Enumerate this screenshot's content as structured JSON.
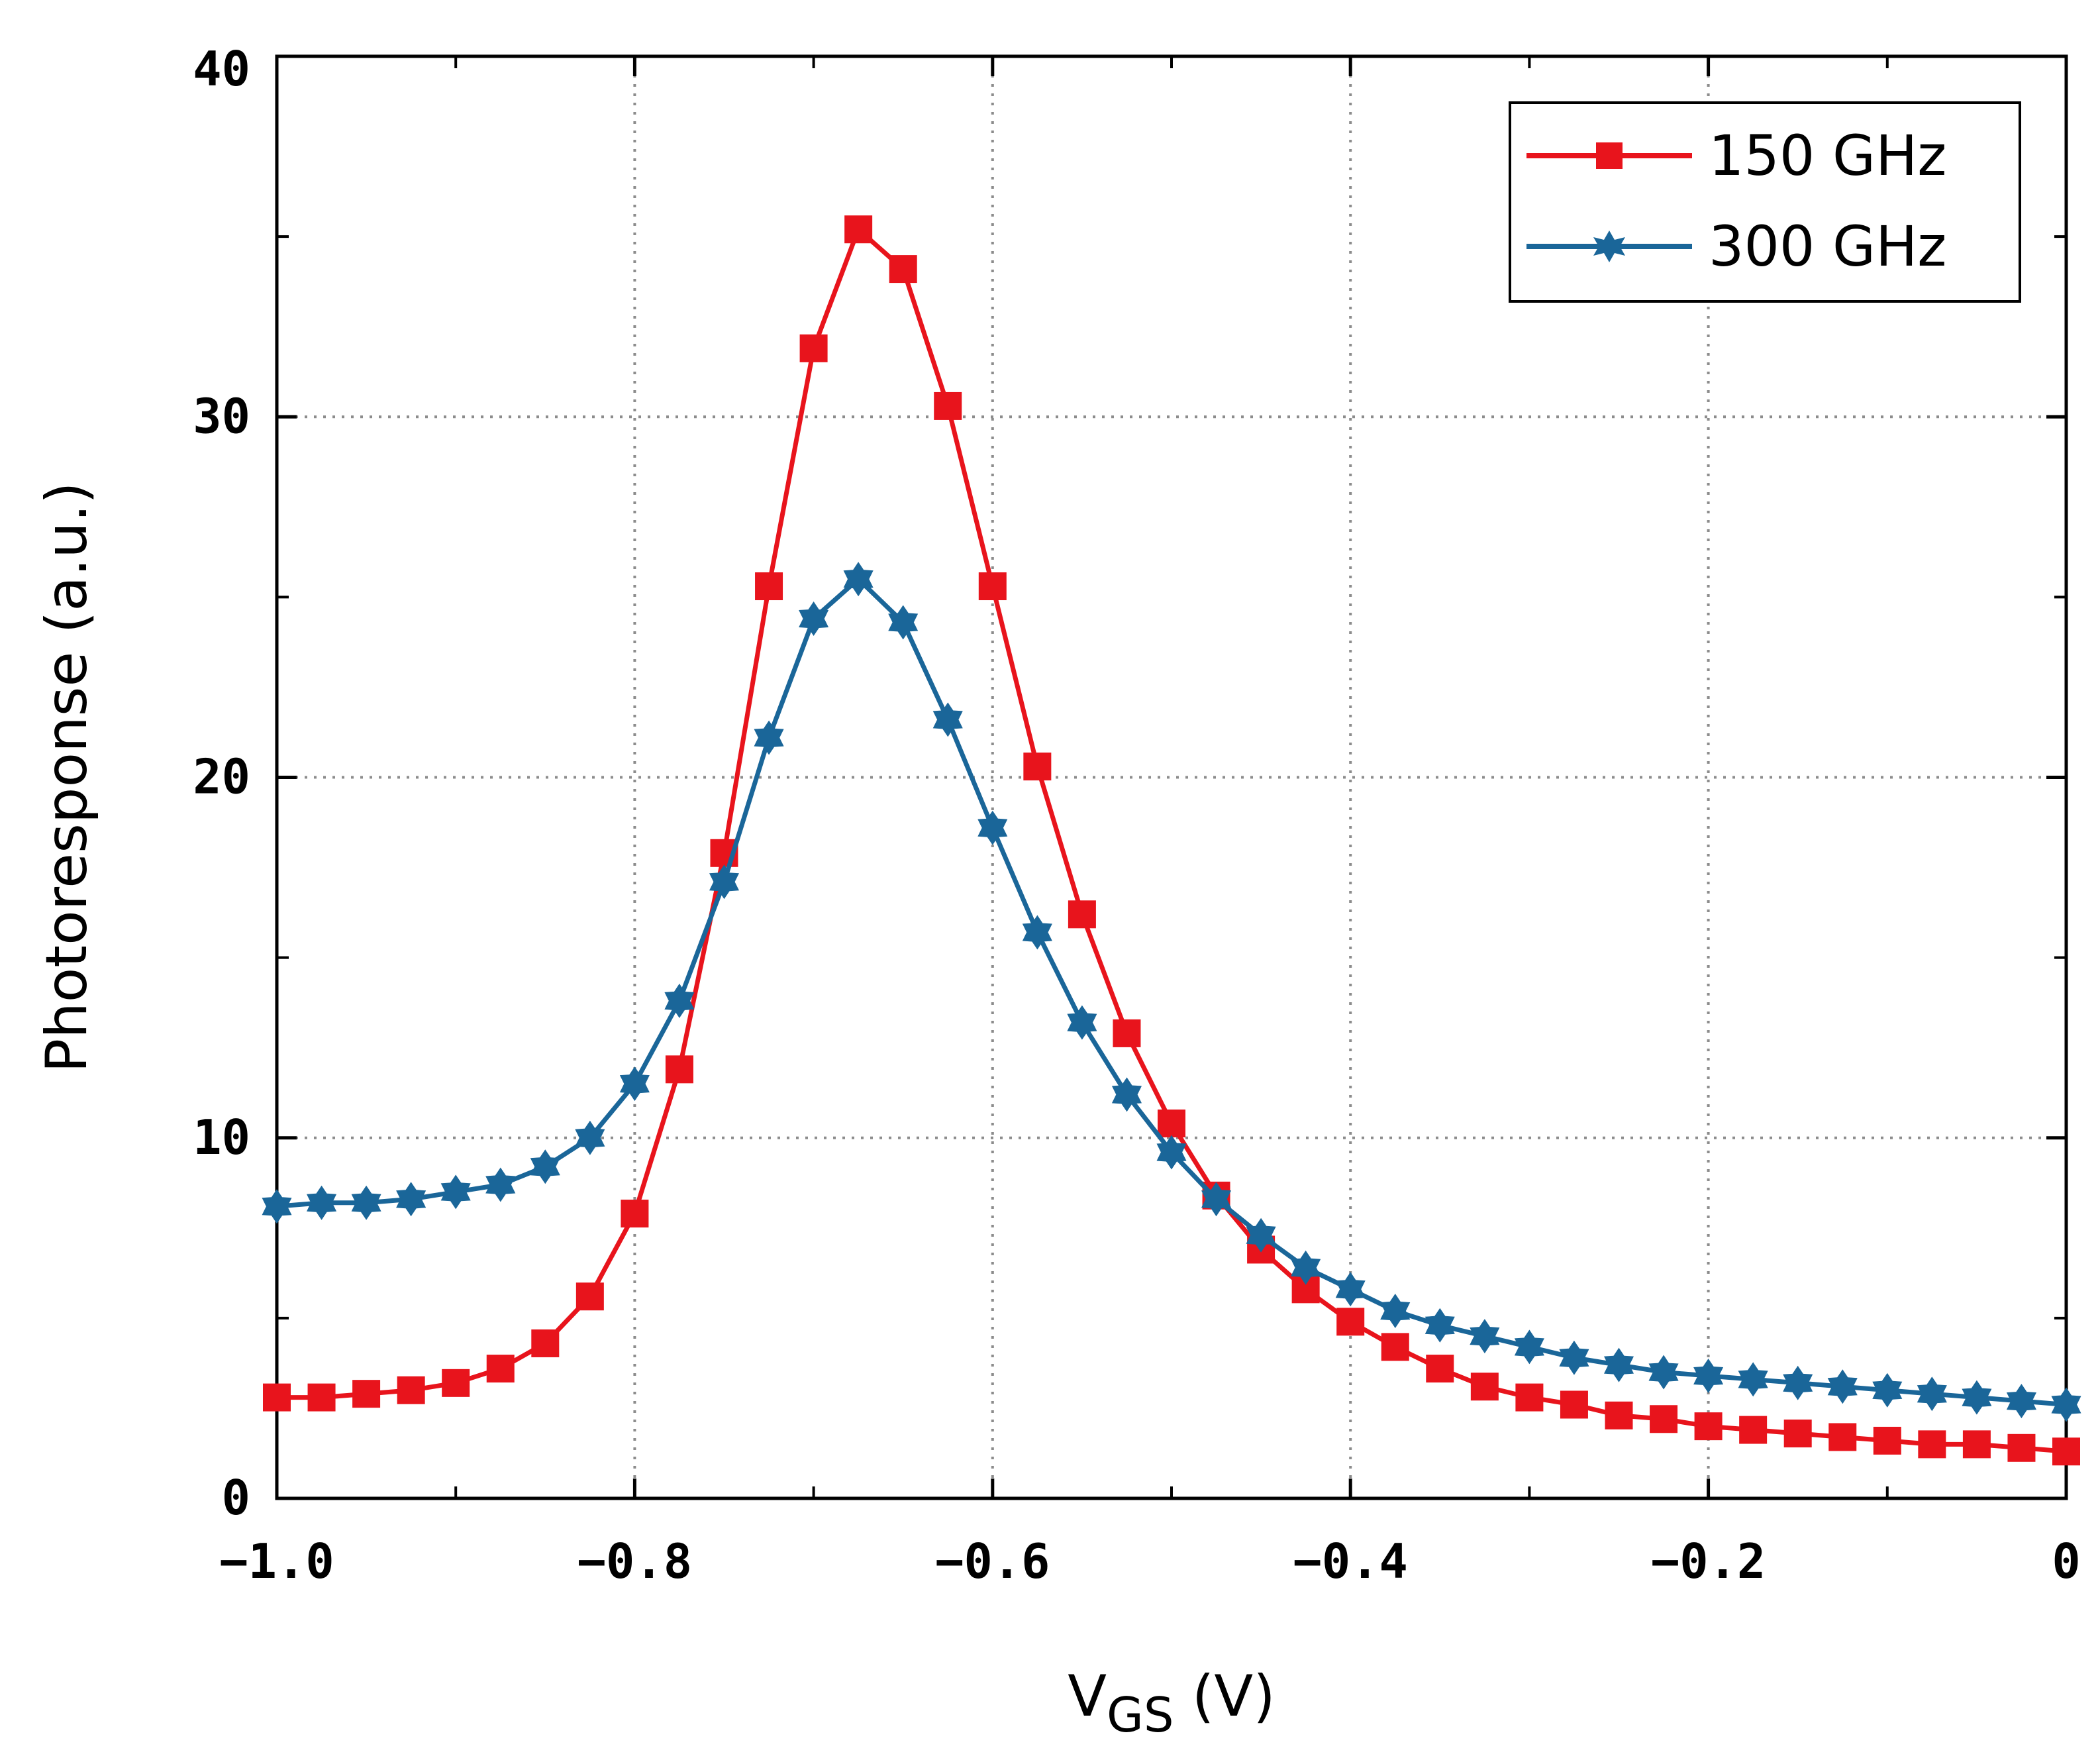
{
  "chart_data": {
    "type": "line",
    "title": "",
    "xlabel": {
      "main": "V",
      "subscript": "GS",
      "unit": " (V)"
    },
    "ylabel": "Photoresponse (a.u.)",
    "xlim": [
      -1.0,
      0
    ],
    "ylim": [
      0,
      40
    ],
    "x_ticks": [
      -1.0,
      -0.8,
      -0.6,
      -0.4,
      -0.2,
      0
    ],
    "x_tick_labels": [
      "−1.0",
      "−0.8",
      "−0.6",
      "−0.4",
      "−0.2",
      "0"
    ],
    "y_ticks": [
      0,
      10,
      20,
      30,
      40
    ],
    "y_tick_labels": [
      "0",
      "10",
      "20",
      "30",
      "40"
    ],
    "grid": true,
    "legend_position": "top-right",
    "x": [
      -1.0,
      -0.975,
      -0.95,
      -0.925,
      -0.9,
      -0.875,
      -0.85,
      -0.825,
      -0.8,
      -0.775,
      -0.75,
      -0.725,
      -0.7,
      -0.675,
      -0.65,
      -0.625,
      -0.6,
      -0.575,
      -0.55,
      -0.525,
      -0.5,
      -0.475,
      -0.45,
      -0.425,
      -0.4,
      -0.375,
      -0.35,
      -0.325,
      -0.3,
      -0.275,
      -0.25,
      -0.225,
      -0.2,
      -0.175,
      -0.15,
      -0.125,
      -0.1,
      -0.075,
      -0.05,
      -0.025,
      0
    ],
    "series": [
      {
        "name": "150 GHz",
        "color": "#e8141c",
        "marker": "square",
        "values": [
          2.8,
          2.8,
          2.9,
          3.0,
          3.2,
          3.6,
          4.3,
          5.6,
          7.9,
          11.9,
          17.9,
          25.3,
          31.9,
          35.2,
          34.1,
          30.3,
          25.3,
          20.3,
          16.2,
          12.9,
          10.4,
          8.4,
          6.9,
          5.8,
          4.9,
          4.2,
          3.6,
          3.1,
          2.8,
          2.6,
          2.3,
          2.2,
          2.0,
          1.9,
          1.8,
          1.7,
          1.6,
          1.5,
          1.5,
          1.4,
          1.3
        ]
      },
      {
        "name": "300 GHz",
        "color": "#1a6699",
        "marker": "star",
        "values": [
          8.1,
          8.2,
          8.2,
          8.3,
          8.5,
          8.7,
          9.2,
          10.0,
          11.5,
          13.8,
          17.1,
          21.1,
          24.4,
          25.5,
          24.3,
          21.6,
          18.6,
          15.7,
          13.2,
          11.2,
          9.6,
          8.3,
          7.3,
          6.4,
          5.8,
          5.2,
          4.8,
          4.5,
          4.2,
          3.9,
          3.7,
          3.5,
          3.4,
          3.3,
          3.2,
          3.1,
          3.0,
          2.9,
          2.8,
          2.7,
          2.6
        ]
      }
    ]
  }
}
